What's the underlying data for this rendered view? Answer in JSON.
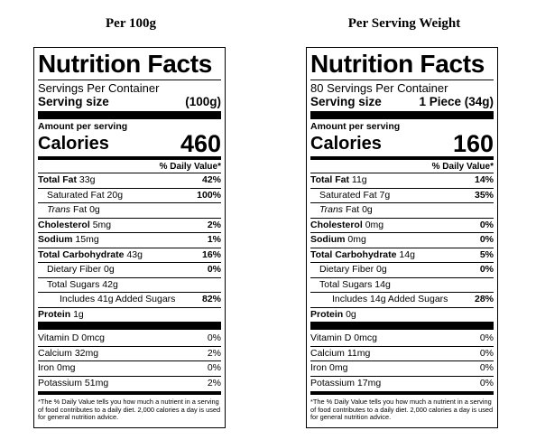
{
  "panels": [
    {
      "heading": "Per 100g",
      "title": "Nutrition Facts",
      "servings_per_container": "Servings Per Container",
      "serving_size_label": "Serving size",
      "serving_size_value": "(100g)",
      "amount_per_serving": "Amount per serving",
      "calories_label": "Calories",
      "calories_value": "460",
      "dv_header": "% Daily Value*",
      "total_fat": {
        "label": "Total Fat",
        "amount": "33g",
        "dv": "42%"
      },
      "saturated_fat": {
        "label": "Saturated Fat 20g",
        "dv": "100%"
      },
      "trans_fat": {
        "label": "Trans",
        "amount": "Fat 0g"
      },
      "cholesterol": {
        "label": "Cholesterol",
        "amount": "5mg",
        "dv": "2%"
      },
      "sodium": {
        "label": "Sodium",
        "amount": "15mg",
        "dv": "1%"
      },
      "total_carb": {
        "label": "Total Carbohydrate",
        "amount": "43g",
        "dv": "16%"
      },
      "fiber": {
        "label": "Dietary Fiber 0g",
        "dv": "0%"
      },
      "sugars": {
        "label": "Total Sugars 42g"
      },
      "added_sugars": {
        "label": "Includes 41g Added Sugars",
        "dv": "82%"
      },
      "protein": {
        "label": "Protein",
        "amount": "1g"
      },
      "vitamin_d": {
        "label": "Vitamin D 0mcg",
        "dv": "0%"
      },
      "calcium": {
        "label": "Calcium 32mg",
        "dv": "2%"
      },
      "iron": {
        "label": "Iron 0mg",
        "dv": "0%"
      },
      "potassium": {
        "label": "Potassium 51mg",
        "dv": "2%"
      },
      "footnote": "*The % Daily Value tells you how much a nutrient in a serving of food contributes to a daily diet. 2,000 calories a day is used for general nutrition advice."
    },
    {
      "heading": "Per Serving Weight",
      "title": "Nutrition Facts",
      "servings_per_container": "80 Servings Per Container",
      "serving_size_label": "Serving size",
      "serving_size_value": "1 Piece (34g)",
      "amount_per_serving": "Amount per serving",
      "calories_label": "Calories",
      "calories_value": "160",
      "dv_header": "% Daily Value*",
      "total_fat": {
        "label": "Total Fat",
        "amount": "11g",
        "dv": "14%"
      },
      "saturated_fat": {
        "label": "Saturated Fat 7g",
        "dv": "35%"
      },
      "trans_fat": {
        "label": "Trans",
        "amount": "Fat 0g"
      },
      "cholesterol": {
        "label": "Cholesterol",
        "amount": "0mg",
        "dv": "0%"
      },
      "sodium": {
        "label": "Sodium",
        "amount": "0mg",
        "dv": "0%"
      },
      "total_carb": {
        "label": "Total Carbohydrate",
        "amount": "14g",
        "dv": "5%"
      },
      "fiber": {
        "label": "Dietary Fiber 0g",
        "dv": "0%"
      },
      "sugars": {
        "label": "Total Sugars 14g"
      },
      "added_sugars": {
        "label": "Includes 14g Added Sugars",
        "dv": "28%"
      },
      "protein": {
        "label": "Protein",
        "amount": "0g"
      },
      "vitamin_d": {
        "label": "Vitamin D 0mcg",
        "dv": "0%"
      },
      "calcium": {
        "label": "Calcium 11mg",
        "dv": "0%"
      },
      "iron": {
        "label": "Iron 0mg",
        "dv": "0%"
      },
      "potassium": {
        "label": "Potassium 17mg",
        "dv": "0%"
      },
      "footnote": "*The % Daily Value tells you how much a nutrient in a serving of food contributes to a daily diet. 2,000 calories a day is used for general nutrition advice."
    }
  ]
}
